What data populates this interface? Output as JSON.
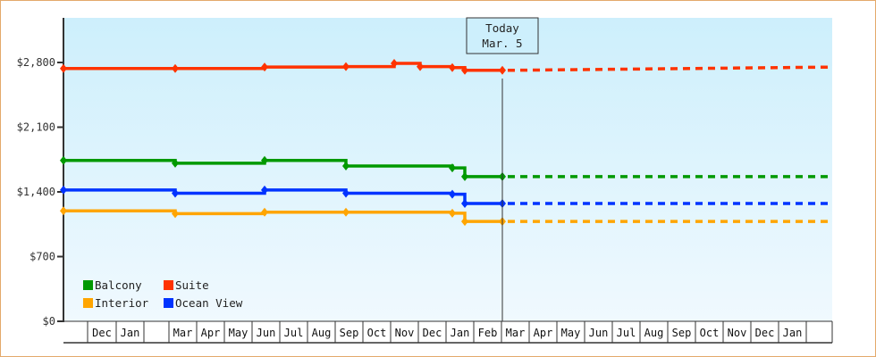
{
  "chart_data": {
    "type": "line",
    "title": "",
    "xlabel": "",
    "ylabel": "",
    "ylim": [
      0,
      3100
    ],
    "y_ticks": [
      "$0",
      "$700",
      "$1,400",
      "$2,100",
      "$2,800"
    ],
    "y_tick_values": [
      0,
      700,
      1400,
      2100,
      2800
    ],
    "x_month_labels": [
      "",
      "Dec",
      "Jan",
      "",
      "Mar",
      "Apr",
      "May",
      "Jun",
      "Jul",
      "Aug",
      "Sep",
      "Oct",
      "Nov",
      "Dec",
      "Jan",
      "Feb",
      "Mar",
      "Apr",
      "May",
      "Jun",
      "Jul",
      "Aug",
      "Sep",
      "Oct",
      "Nov",
      "Dec",
      "Jan",
      ""
    ],
    "today_marker": {
      "line1": "Today",
      "line2": "Mar. 5"
    },
    "legend": [
      {
        "name": "Balcony",
        "color": "#009900"
      },
      {
        "name": "Suite",
        "color": "#ff3300"
      },
      {
        "name": "Interior",
        "color": "#ffa500"
      },
      {
        "name": "Ocean View",
        "color": "#0033ff"
      }
    ],
    "grid": false,
    "legend_position": "lower-left inside plot",
    "series": [
      {
        "name": "Suite",
        "color": "#ff3300",
        "historical": [
          {
            "x": "Nov (start)",
            "y": 2735
          },
          {
            "x": "Mar",
            "y": 2735
          },
          {
            "x": "Jun",
            "y": 2750
          },
          {
            "x": "Sep",
            "y": 2755
          },
          {
            "x": "Nov",
            "y": 2790
          },
          {
            "x": "Dec",
            "y": 2755
          },
          {
            "x": "Jan",
            "y": 2745
          },
          {
            "x": "Jan (late)",
            "y": 2715
          },
          {
            "x": "Mar 5 (today)",
            "y": 2715
          }
        ],
        "projected": [
          {
            "x": "Mar",
            "y": 2715
          },
          {
            "x": "Jan",
            "y": 2750
          }
        ]
      },
      {
        "name": "Balcony",
        "color": "#009900",
        "historical": [
          {
            "x": "Nov (start)",
            "y": 1740
          },
          {
            "x": "Mar",
            "y": 1710
          },
          {
            "x": "Jun",
            "y": 1740
          },
          {
            "x": "Sep",
            "y": 1680
          },
          {
            "x": "Jan",
            "y": 1660
          },
          {
            "x": "Jan (late)",
            "y": 1565
          },
          {
            "x": "Mar 5 (today)",
            "y": 1565
          }
        ],
        "projected": [
          {
            "x": "Mar",
            "y": 1565
          },
          {
            "x": "Jan",
            "y": 1565
          }
        ]
      },
      {
        "name": "Ocean View",
        "color": "#0033ff",
        "historical": [
          {
            "x": "Nov (start)",
            "y": 1420
          },
          {
            "x": "Mar",
            "y": 1385
          },
          {
            "x": "Jun",
            "y": 1420
          },
          {
            "x": "Sep",
            "y": 1385
          },
          {
            "x": "Jan",
            "y": 1375
          },
          {
            "x": "Jan (late)",
            "y": 1275
          },
          {
            "x": "Mar 5 (today)",
            "y": 1275
          }
        ],
        "projected": [
          {
            "x": "Mar",
            "y": 1275
          },
          {
            "x": "Jan",
            "y": 1275
          }
        ]
      },
      {
        "name": "Interior",
        "color": "#ffa500",
        "historical": [
          {
            "x": "Nov (start)",
            "y": 1195
          },
          {
            "x": "Mar",
            "y": 1165
          },
          {
            "x": "Jun",
            "y": 1180
          },
          {
            "x": "Sep",
            "y": 1180
          },
          {
            "x": "Jan",
            "y": 1170
          },
          {
            "x": "Jan (late)",
            "y": 1080
          },
          {
            "x": "Mar 5 (today)",
            "y": 1080
          }
        ],
        "projected": [
          {
            "x": "Mar",
            "y": 1080
          },
          {
            "x": "Jan",
            "y": 1080
          }
        ]
      }
    ]
  },
  "colors": {
    "frame_border": "#e3a96b",
    "plot_bg_top": "#cdeffc",
    "plot_bg_bottom": "#f0f9fe",
    "axis": "#333333"
  }
}
